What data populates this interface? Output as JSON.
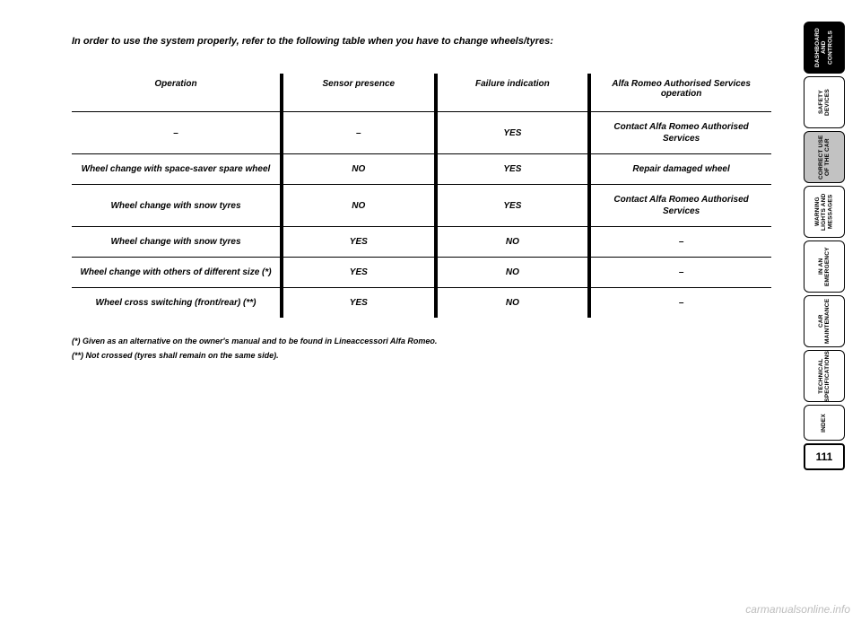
{
  "intro": "In order to use the system properly, refer to the following table when you have to change wheels/tyres:",
  "table": {
    "columns": [
      "Operation",
      "Sensor presence",
      "Failure indication",
      "Alfa Romeo Authorised Services operation"
    ],
    "rows": [
      [
        "–",
        "–",
        "YES",
        "Contact Alfa Romeo Authorised Services"
      ],
      [
        "Wheel change with space-saver spare wheel",
        "NO",
        "YES",
        "Repair damaged wheel"
      ],
      [
        "Wheel change with snow tyres",
        "NO",
        "YES",
        "Contact Alfa Romeo Authorised Services"
      ],
      [
        "Wheel change with snow tyres",
        "YES",
        "NO",
        "–"
      ],
      [
        "Wheel change with others of different size (*)",
        "YES",
        "NO",
        "–"
      ],
      [
        "Wheel cross switching (front/rear) (**)",
        "YES",
        "NO",
        "–"
      ]
    ]
  },
  "footnotes": [
    "(*) Given as an alternative on the owner's manual and to be found in Lineaccessori Alfa Romeo.",
    "(**) Not crossed (tyres shall remain on the same side)."
  ],
  "tabs": [
    {
      "label": "DASHBOARD AND CONTROLS",
      "style": "dark"
    },
    {
      "label": "SAFETY DEVICES",
      "style": "plain"
    },
    {
      "label": "CORRECT USE OF THE CAR",
      "style": "grey2"
    },
    {
      "label": "WARNING LIGHTS AND MESSAGES",
      "style": "plain"
    },
    {
      "label": "IN AN EMERGENCY",
      "style": "plain"
    },
    {
      "label": "CAR MAINTENANCE",
      "style": "plain"
    },
    {
      "label": "TECHNICAL SPECIFICATIONS",
      "style": "plain"
    },
    {
      "label": "INDEX",
      "style": "plain",
      "short": true
    }
  ],
  "page_number": "111",
  "watermark": "carmanualsonline.info"
}
